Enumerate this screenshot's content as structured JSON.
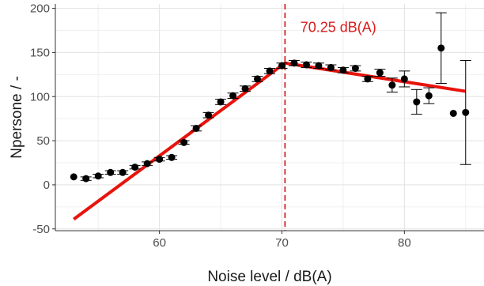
{
  "chart_data": {
    "type": "scatter",
    "xlabel": "Noise level / dB(A)",
    "ylabel": "Npersone / -",
    "xlim": [
      51.5,
      86.5
    ],
    "ylim": [
      -52,
      205
    ],
    "x_ticks": [
      60,
      70,
      80
    ],
    "x_tick_labels": [
      "60",
      "70",
      "80"
    ],
    "y_ticks": [
      -50,
      0,
      50,
      100,
      150,
      200
    ],
    "y_tick_labels": [
      "-50",
      "0",
      "50",
      "100",
      "150",
      "200"
    ],
    "grid": true,
    "series": [
      {
        "kind": "points_with_error_bars",
        "x": [
          53,
          54,
          55,
          56,
          57,
          58,
          59,
          60,
          61,
          62,
          63,
          64,
          65,
          66,
          67,
          68,
          69,
          70,
          71,
          72,
          73,
          74,
          75,
          76,
          77,
          78,
          79,
          80,
          81,
          82,
          83,
          84,
          85
        ],
        "y": [
          9,
          7,
          10,
          14,
          14,
          20,
          24,
          29,
          31,
          48,
          64,
          79,
          94,
          101,
          109,
          120,
          129,
          135,
          138,
          136,
          135,
          133,
          130,
          132,
          120,
          127,
          113,
          120,
          94,
          101,
          155,
          81,
          82
        ],
        "err": [
          0,
          2,
          2,
          2,
          2,
          2,
          2,
          2,
          2,
          2,
          3,
          3,
          3,
          3,
          3,
          3,
          3,
          3,
          3,
          3,
          3,
          3,
          3,
          3,
          3,
          4,
          8,
          9,
          14,
          9,
          40,
          0,
          59
        ]
      },
      {
        "kind": "fit_line",
        "color": "#e8130c",
        "x": [
          53,
          70.25,
          85
        ],
        "y": [
          -39,
          138,
          106
        ]
      }
    ],
    "annotations": [
      {
        "kind": "vline",
        "x": 70.25,
        "color": "#cc1111",
        "style": "dashed"
      },
      {
        "kind": "text",
        "text": "70.25 dB(A)",
        "x": 71.5,
        "y": 173,
        "color": "#d91c1c"
      }
    ]
  }
}
